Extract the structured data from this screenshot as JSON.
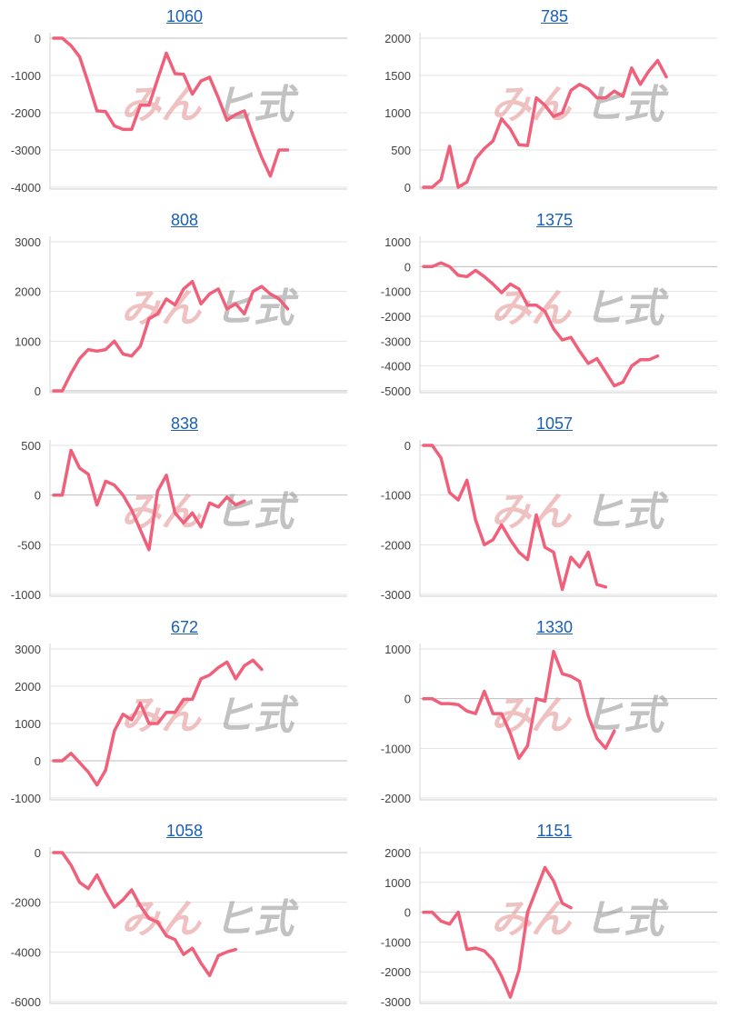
{
  "chart_data": [
    {
      "type": "line",
      "title": "1060",
      "ylim": [
        -4000,
        0
      ],
      "yticks": [
        0,
        -1000,
        -2000,
        -3000,
        -4000
      ],
      "values": [
        0,
        0,
        -200,
        -500,
        -1200,
        -1950,
        -1970,
        -2350,
        -2450,
        -2450,
        -1800,
        -1800,
        -1100,
        -400,
        -950,
        -970,
        -1500,
        -1150,
        -1050,
        -1600,
        -2200,
        -2050,
        -1950,
        -2600,
        -3200,
        -3700,
        -3000,
        -3000
      ],
      "color": "#f0607a",
      "grid": true
    },
    {
      "type": "line",
      "title": "785",
      "ylim": [
        0,
        2000
      ],
      "yticks": [
        2000,
        1500,
        1000,
        500,
        0
      ],
      "values": [
        0,
        0,
        100,
        550,
        0,
        70,
        380,
        520,
        620,
        920,
        780,
        570,
        560,
        1200,
        1100,
        950,
        1000,
        1300,
        1380,
        1320,
        1200,
        1200,
        1290,
        1220,
        1600,
        1380,
        1560,
        1700,
        1480
      ],
      "color": "#f0607a",
      "grid": true
    },
    {
      "type": "line",
      "title": "808",
      "ylim": [
        0,
        3000
      ],
      "yticks": [
        3000,
        2000,
        1000,
        0
      ],
      "values": [
        0,
        0,
        350,
        650,
        830,
        800,
        830,
        1000,
        740,
        700,
        900,
        1450,
        1550,
        1850,
        1730,
        2050,
        2200,
        1750,
        1950,
        2050,
        1650,
        1750,
        1550,
        2000,
        2100,
        1950,
        1850,
        1650
      ],
      "color": "#f0607a",
      "grid": true
    },
    {
      "type": "line",
      "title": "1375",
      "ylim": [
        -5000,
        1000
      ],
      "yticks": [
        1000,
        0,
        -1000,
        -2000,
        -3000,
        -4000,
        -5000
      ],
      "values": [
        0,
        0,
        150,
        0,
        -350,
        -400,
        -150,
        -400,
        -700,
        -1050,
        -700,
        -900,
        -1550,
        -1550,
        -1800,
        -2500,
        -2950,
        -2850,
        -3400,
        -3900,
        -3700,
        -4250,
        -4800,
        -4650,
        -4000,
        -3750,
        -3750,
        -3600
      ],
      "color": "#f0607a",
      "grid": true
    },
    {
      "type": "line",
      "title": "838",
      "ylim": [
        -1000,
        500
      ],
      "yticks": [
        500,
        0,
        -500,
        -1000
      ],
      "values": [
        0,
        0,
        450,
        270,
        210,
        -100,
        140,
        100,
        0,
        -150,
        -350,
        -550,
        40,
        200,
        -180,
        -280,
        -180,
        -320,
        -80,
        -120,
        -20,
        -100,
        -60
      ],
      "color": "#f0607a",
      "grid": true
    },
    {
      "type": "line",
      "title": "1057",
      "ylim": [
        -3000,
        0
      ],
      "yticks": [
        0,
        -1000,
        -2000,
        -3000
      ],
      "values": [
        0,
        0,
        -250,
        -950,
        -1100,
        -700,
        -1500,
        -2000,
        -1900,
        -1600,
        -1900,
        -2150,
        -2300,
        -1400,
        -2050,
        -2150,
        -2900,
        -2250,
        -2450,
        -2150,
        -2800,
        -2850
      ],
      "color": "#f0607a",
      "grid": true
    },
    {
      "type": "line",
      "title": "672",
      "ylim": [
        -1000,
        3000
      ],
      "yticks": [
        3000,
        2000,
        1000,
        0,
        -1000
      ],
      "values": [
        0,
        0,
        200,
        -50,
        -300,
        -650,
        -250,
        800,
        1250,
        1100,
        1550,
        1000,
        1000,
        1300,
        1300,
        1650,
        1650,
        2200,
        2300,
        2500,
        2650,
        2200,
        2550,
        2700,
        2450
      ],
      "color": "#f0607a",
      "grid": true
    },
    {
      "type": "line",
      "title": "1330",
      "ylim": [
        -2000,
        1000
      ],
      "yticks": [
        1000,
        0,
        -1000,
        -2000
      ],
      "values": [
        0,
        0,
        -100,
        -100,
        -120,
        -250,
        -300,
        150,
        -300,
        -300,
        -700,
        -1200,
        -950,
        0,
        -50,
        950,
        500,
        450,
        350,
        -350,
        -800,
        -1000,
        -650
      ],
      "color": "#f0607a",
      "grid": true
    },
    {
      "type": "line",
      "title": "1058",
      "ylim": [
        -6000,
        0
      ],
      "yticks": [
        0,
        -2000,
        -4000,
        -6000
      ],
      "values": [
        0,
        0,
        -500,
        -1200,
        -1450,
        -900,
        -1600,
        -2200,
        -1900,
        -1500,
        -2150,
        -2650,
        -2800,
        -3350,
        -3500,
        -4100,
        -3850,
        -4450,
        -4950,
        -4150,
        -4000,
        -3900
      ],
      "color": "#f0607a",
      "grid": true
    },
    {
      "type": "line",
      "title": "1151",
      "ylim": [
        -3000,
        2000
      ],
      "yticks": [
        2000,
        1000,
        0,
        -1000,
        -2000,
        -3000
      ],
      "values": [
        0,
        0,
        -300,
        -400,
        0,
        -1250,
        -1200,
        -1300,
        -1600,
        -2150,
        -2850,
        -1950,
        0,
        750,
        1500,
        1050,
        300,
        150
      ],
      "color": "#f0607a",
      "grid": true
    }
  ],
  "watermark": {
    "part1": "みん",
    "part2": "ヒ式"
  }
}
